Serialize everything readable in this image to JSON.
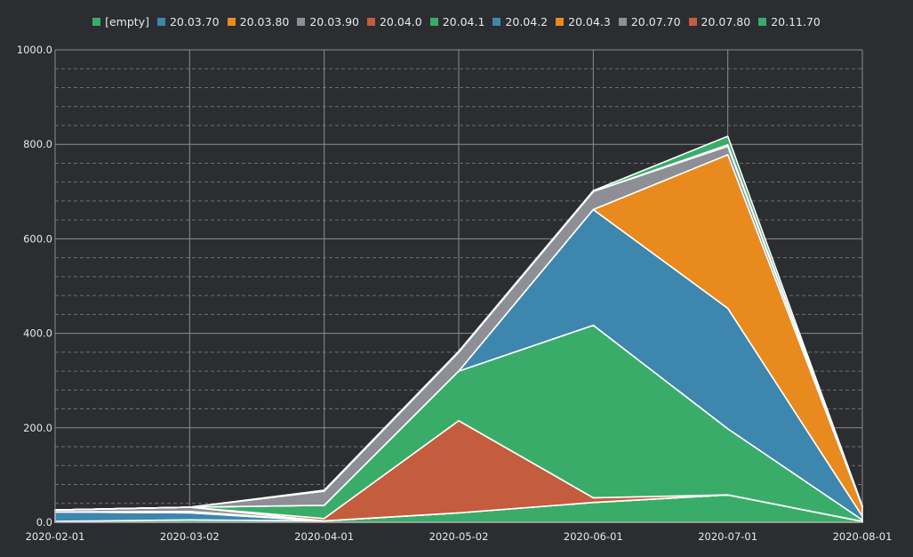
{
  "colors": {
    "background": "#2b2d31",
    "text": "#e8e8e8",
    "grid_major": "#8a8c92",
    "grid_minor": "#6c6e74",
    "area_stroke": "#ffffff"
  },
  "chart_data": {
    "type": "area",
    "stacked": true,
    "title": "",
    "xlabel": "",
    "ylabel": "",
    "x": [
      "2020-02-01",
      "2020-03-02",
      "2020-04-01",
      "2020-05-02",
      "2020-06-01",
      "2020-07-01",
      "2020-08-01"
    ],
    "ylim": [
      0,
      1000
    ],
    "yticks": [
      "0.0",
      "200.0",
      "400.0",
      "600.0",
      "800.0",
      "1000.0"
    ],
    "grid": true,
    "legend_position": "top-center",
    "series": [
      {
        "name": "[empty]",
        "color": "#3aac6a",
        "values": [
          2,
          5,
          3,
          20,
          42,
          58,
          2
        ]
      },
      {
        "name": "20.03.70",
        "color": "#3d86ad",
        "values": [
          20,
          15,
          0,
          0,
          0,
          0,
          0
        ]
      },
      {
        "name": "20.03.80",
        "color": "#e88a1e",
        "values": [
          0,
          3,
          0,
          0,
          0,
          0,
          0
        ]
      },
      {
        "name": "20.03.90",
        "color": "#8e8e96",
        "values": [
          4,
          9,
          0,
          0,
          0,
          0,
          0
        ]
      },
      {
        "name": "20.04.0",
        "color": "#c45c3e",
        "values": [
          0,
          0,
          5,
          195,
          10,
          0,
          0
        ]
      },
      {
        "name": "20.04.1",
        "color": "#3aac6a",
        "values": [
          0,
          0,
          28,
          105,
          365,
          140,
          3
        ]
      },
      {
        "name": "20.04.2",
        "color": "#3d86ad",
        "values": [
          0,
          0,
          0,
          0,
          245,
          255,
          8
        ]
      },
      {
        "name": "20.04.3",
        "color": "#e88a1e",
        "values": [
          0,
          0,
          0,
          0,
          0,
          325,
          20
        ]
      },
      {
        "name": "20.07.70",
        "color": "#8e8e96",
        "values": [
          0,
          0,
          30,
          40,
          38,
          18,
          1
        ]
      },
      {
        "name": "20.07.80",
        "color": "#c45c3e",
        "values": [
          0,
          0,
          0,
          0,
          0,
          3,
          0
        ]
      },
      {
        "name": "20.11.70",
        "color": "#3aac6a",
        "values": [
          0,
          0,
          2,
          2,
          2,
          18,
          1
        ]
      }
    ]
  }
}
